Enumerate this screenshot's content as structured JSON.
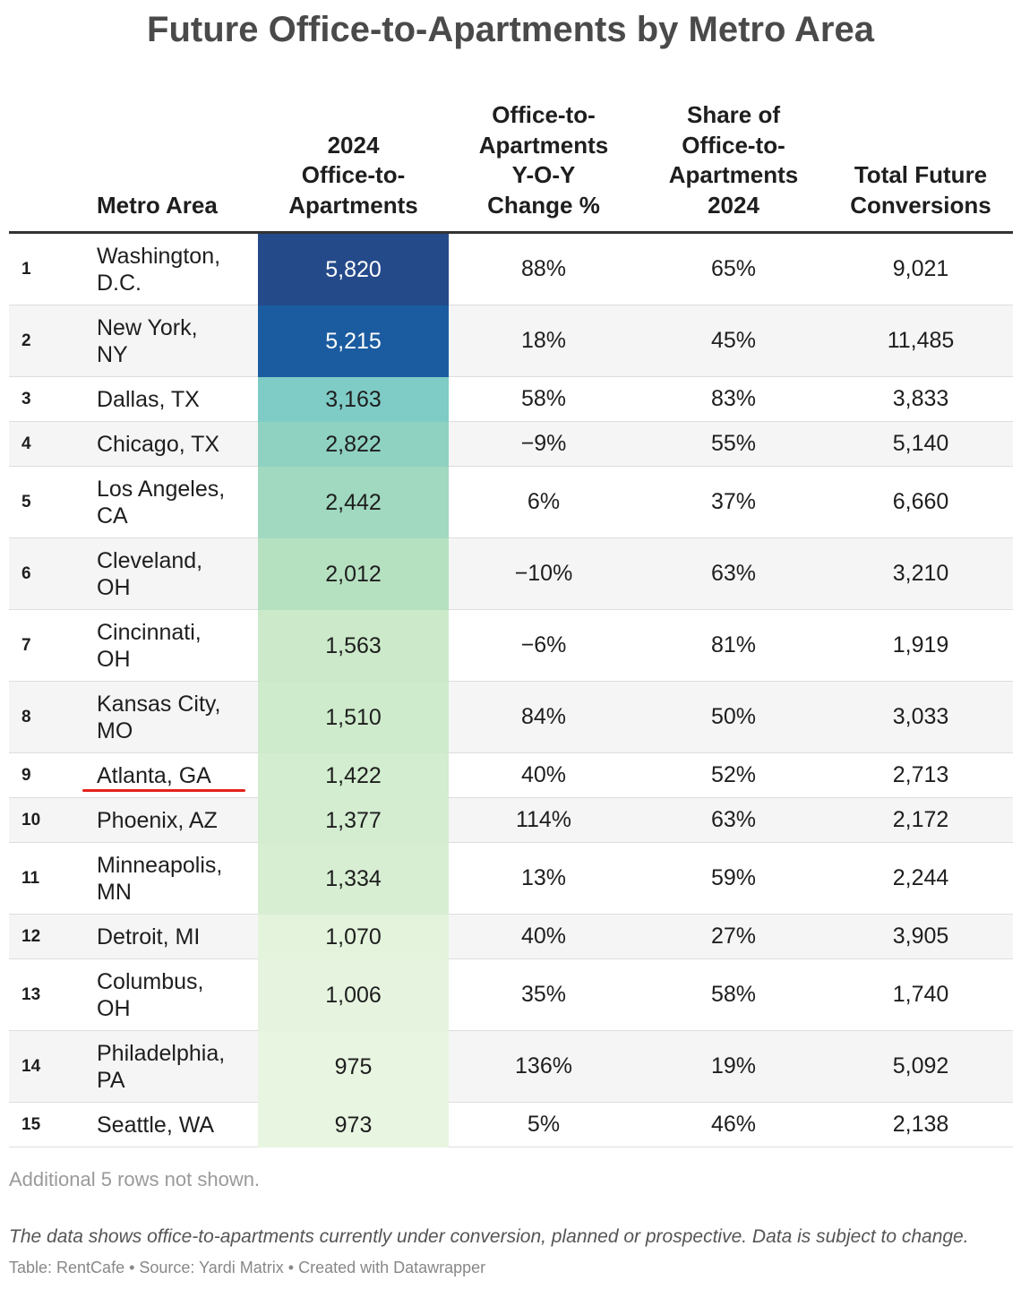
{
  "title": "Future Office-to-Apartments by Metro Area",
  "headers": {
    "metro": [
      "Metro Area"
    ],
    "office_2024": [
      "2024",
      "Office-to-",
      "Apartments"
    ],
    "yoy": [
      "Office-to-",
      "Apartments",
      "Y-O-Y",
      "Change %"
    ],
    "share": [
      "Share of",
      "Office-to-",
      "Apartments",
      "2024"
    ],
    "total": [
      "Total Future",
      "Conversions"
    ]
  },
  "heat_scale": {
    "colors": [
      "#e8f5e0",
      "#c1e6c2",
      "#99d5c0",
      "#75c9c8",
      "#4eabc9",
      "#1862a7",
      "#244a8a"
    ],
    "min": 973,
    "max": 5820
  },
  "highlight": {
    "row": 9,
    "color": "#e3221c"
  },
  "chart_data": {
    "type": "table",
    "columns": [
      "",
      "Metro Area",
      "2024 Office-to-Apartments",
      "Office-to-Apartments Y-O-Y Change %",
      "Share of Office-to-Apartments 2024",
      "Total Future Conversions"
    ],
    "rows": [
      {
        "rank": "1",
        "metro": [
          "Washington,",
          "D.C."
        ],
        "office_2024": 5820,
        "office_2024_label": "5,820",
        "yoy": "88%",
        "share": "65%",
        "total": "9,021"
      },
      {
        "rank": "2",
        "metro": [
          "New York,",
          "NY"
        ],
        "office_2024": 5215,
        "office_2024_label": "5,215",
        "yoy": "18%",
        "share": "45%",
        "total": "11,485"
      },
      {
        "rank": "3",
        "metro": [
          "Dallas, TX"
        ],
        "office_2024": 3163,
        "office_2024_label": "3,163",
        "yoy": "58%",
        "share": "83%",
        "total": "3,833"
      },
      {
        "rank": "4",
        "metro": [
          "Chicago, TX"
        ],
        "office_2024": 2822,
        "office_2024_label": "2,822",
        "yoy": "−9%",
        "share": "55%",
        "total": "5,140"
      },
      {
        "rank": "5",
        "metro": [
          "Los Angeles,",
          "CA"
        ],
        "office_2024": 2442,
        "office_2024_label": "2,442",
        "yoy": "6%",
        "share": "37%",
        "total": "6,660"
      },
      {
        "rank": "6",
        "metro": [
          "Cleveland,",
          "OH"
        ],
        "office_2024": 2012,
        "office_2024_label": "2,012",
        "yoy": "−10%",
        "share": "63%",
        "total": "3,210"
      },
      {
        "rank": "7",
        "metro": [
          "Cincinnati,",
          "OH"
        ],
        "office_2024": 1563,
        "office_2024_label": "1,563",
        "yoy": "−6%",
        "share": "81%",
        "total": "1,919"
      },
      {
        "rank": "8",
        "metro": [
          "Kansas City,",
          "MO"
        ],
        "office_2024": 1510,
        "office_2024_label": "1,510",
        "yoy": "84%",
        "share": "50%",
        "total": "3,033"
      },
      {
        "rank": "9",
        "metro": [
          "Atlanta, GA"
        ],
        "office_2024": 1422,
        "office_2024_label": "1,422",
        "yoy": "40%",
        "share": "52%",
        "total": "2,713"
      },
      {
        "rank": "10",
        "metro": [
          "Phoenix, AZ"
        ],
        "office_2024": 1377,
        "office_2024_label": "1,377",
        "yoy": "114%",
        "share": "63%",
        "total": "2,172"
      },
      {
        "rank": "11",
        "metro": [
          "Minneapolis,",
          "MN"
        ],
        "office_2024": 1334,
        "office_2024_label": "1,334",
        "yoy": "13%",
        "share": "59%",
        "total": "2,244"
      },
      {
        "rank": "12",
        "metro": [
          "Detroit, MI"
        ],
        "office_2024": 1070,
        "office_2024_label": "1,070",
        "yoy": "40%",
        "share": "27%",
        "total": "3,905"
      },
      {
        "rank": "13",
        "metro": [
          "Columbus,",
          "OH"
        ],
        "office_2024": 1006,
        "office_2024_label": "1,006",
        "yoy": "35%",
        "share": "58%",
        "total": "1,740"
      },
      {
        "rank": "14",
        "metro": [
          "Philadelphia,",
          "PA"
        ],
        "office_2024": 975,
        "office_2024_label": "975",
        "yoy": "136%",
        "share": "19%",
        "total": "5,092"
      },
      {
        "rank": "15",
        "metro": [
          "Seattle, WA"
        ],
        "office_2024": 973,
        "office_2024_label": "973",
        "yoy": "5%",
        "share": "46%",
        "total": "2,138"
      }
    ]
  },
  "note": "Additional 5 rows not shown.",
  "description": "The data shows office-to-apartments currently under conversion, planned or prospective. Data is subject to change.",
  "source": "Table: RentCafe • Source: Yardi Matrix • Created with Datawrapper"
}
